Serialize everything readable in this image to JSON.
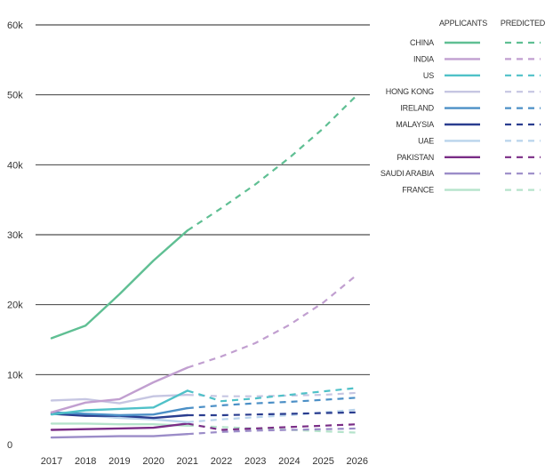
{
  "chart_data": {
    "type": "line",
    "x": [
      2017,
      2018,
      2019,
      2020,
      2021,
      2022,
      2023,
      2024,
      2025,
      2026
    ],
    "ylim": [
      0,
      60000
    ],
    "yticks": [
      0,
      10000,
      20000,
      30000,
      40000,
      50000,
      60000
    ],
    "ytick_labels": [
      "0",
      "10k",
      "20k",
      "30k",
      "40k",
      "50k",
      "60k"
    ],
    "xtick_labels": [
      "2017",
      "2018",
      "2019",
      "2020",
      "2021",
      "2022",
      "2023",
      "2024",
      "2025",
      "2026"
    ],
    "grid": "horizontal",
    "legend_position": "top-right",
    "legend_headers": {
      "actual": "APPLICANTS",
      "predicted": "PREDICTED"
    },
    "actual_range": [
      2017,
      2021
    ],
    "predicted_range": [
      2021,
      2026
    ],
    "series": [
      {
        "name": "CHINA",
        "color": "#5fbf93",
        "values": [
          15200,
          17000,
          21500,
          26300,
          30600,
          33800,
          37200,
          41000,
          45200,
          50000
        ]
      },
      {
        "name": "INDIA",
        "color": "#c19fd0",
        "values": [
          4600,
          6000,
          6500,
          8900,
          11000,
          12600,
          14500,
          17100,
          20300,
          24300
        ]
      },
      {
        "name": "US",
        "color": "#4fc1c8",
        "values": [
          4300,
          4900,
          5100,
          5300,
          7700,
          6200,
          6600,
          7100,
          7600,
          8100
        ]
      },
      {
        "name": "HONG KONG",
        "color": "#c6c6e2",
        "values": [
          6300,
          6500,
          5900,
          6900,
          7100,
          6900,
          6900,
          7000,
          7100,
          7400
        ]
      },
      {
        "name": "IRELAND",
        "color": "#4b8fc6",
        "values": [
          4600,
          4400,
          4200,
          4300,
          5200,
          5600,
          5900,
          6100,
          6400,
          6700
        ]
      },
      {
        "name": "MALAYSIA",
        "color": "#2a3d8f",
        "values": [
          4400,
          4100,
          4100,
          3800,
          4200,
          4200,
          4300,
          4400,
          4500,
          4600
        ]
      },
      {
        "name": "UAE",
        "color": "#b9d4ec",
        "values": [
          4600,
          4200,
          3800,
          3600,
          3200,
          3600,
          3900,
          4200,
          4600,
          5000
        ]
      },
      {
        "name": "PAKISTAN",
        "color": "#7a2d86",
        "values": [
          2100,
          2200,
          2300,
          2400,
          3000,
          2100,
          2300,
          2500,
          2700,
          2900
        ]
      },
      {
        "name": "SAUDI ARABIA",
        "color": "#9b8cc8",
        "values": [
          1000,
          1100,
          1200,
          1200,
          1500,
          1800,
          2000,
          2100,
          2200,
          2300
        ]
      },
      {
        "name": "FRANCE",
        "color": "#b5e3cb",
        "values": [
          3000,
          3000,
          2900,
          2900,
          2700,
          2500,
          2300,
          2100,
          1900,
          1700
        ]
      }
    ]
  }
}
